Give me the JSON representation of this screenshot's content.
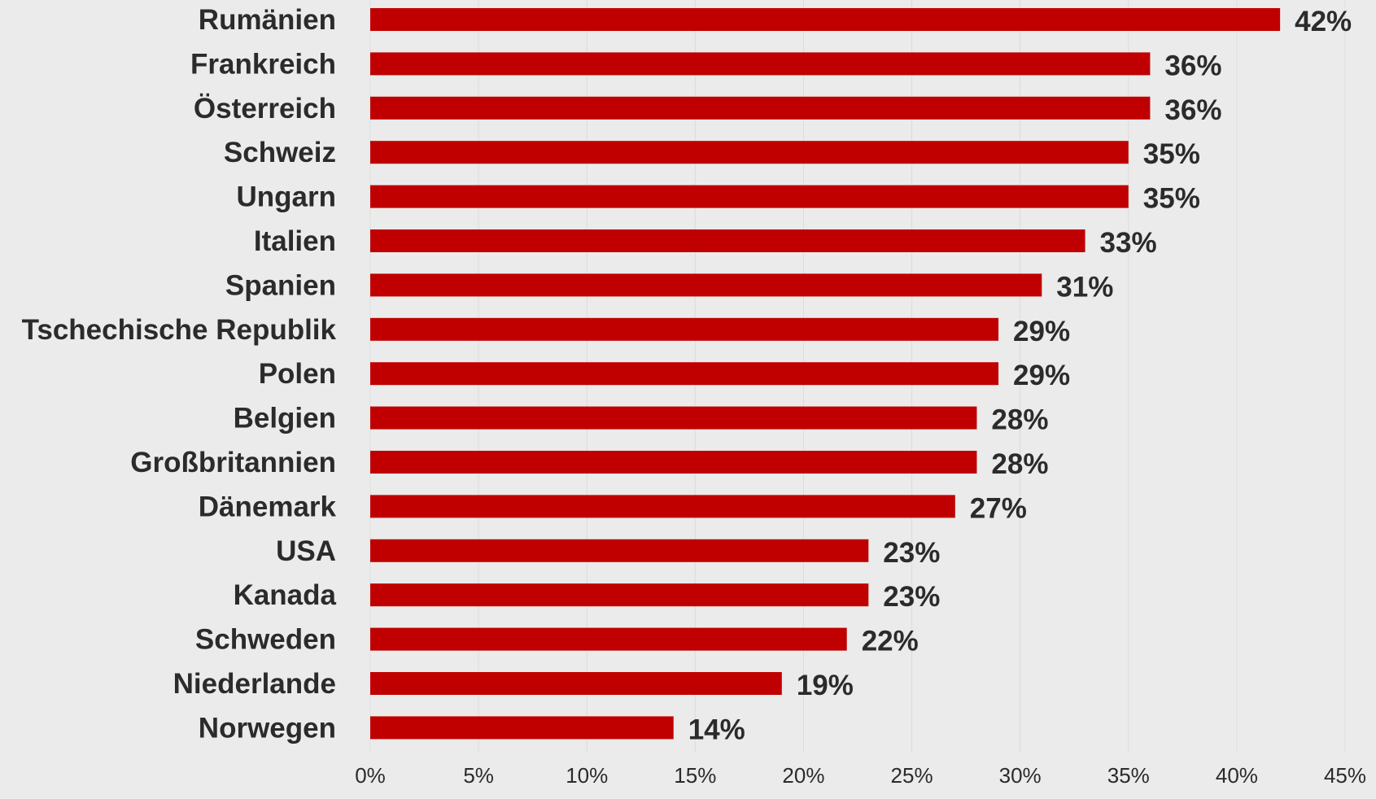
{
  "chart_data": {
    "type": "bar",
    "orientation": "horizontal",
    "categories": [
      "Rumänien",
      "Frankreich",
      "Österreich",
      "Schweiz",
      "Ungarn",
      "Italien",
      "Spanien",
      "Tschechische Republik",
      "Polen",
      "Belgien",
      "Großbritannien",
      "Dänemark",
      "USA",
      "Kanada",
      "Schweden",
      "Niederlande",
      "Norwegen"
    ],
    "values": [
      42,
      36,
      36,
      35,
      35,
      33,
      31,
      29,
      29,
      28,
      28,
      27,
      23,
      23,
      22,
      19,
      14
    ],
    "data_labels": [
      "42%",
      "36%",
      "36%",
      "35%",
      "35%",
      "33%",
      "31%",
      "29%",
      "29%",
      "28%",
      "28%",
      "27%",
      "23%",
      "23%",
      "22%",
      "19%",
      "14%"
    ],
    "x_ticks": [
      "0%",
      "5%",
      "10%",
      "15%",
      "20%",
      "25%",
      "30%",
      "35%",
      "40%",
      "45%"
    ],
    "xlim": [
      0,
      45
    ],
    "grid": "vertical, faint",
    "legend": "none",
    "bar_color": "#c00000",
    "background_color": "#ebebeb",
    "text_color": "#2b2b2b"
  }
}
